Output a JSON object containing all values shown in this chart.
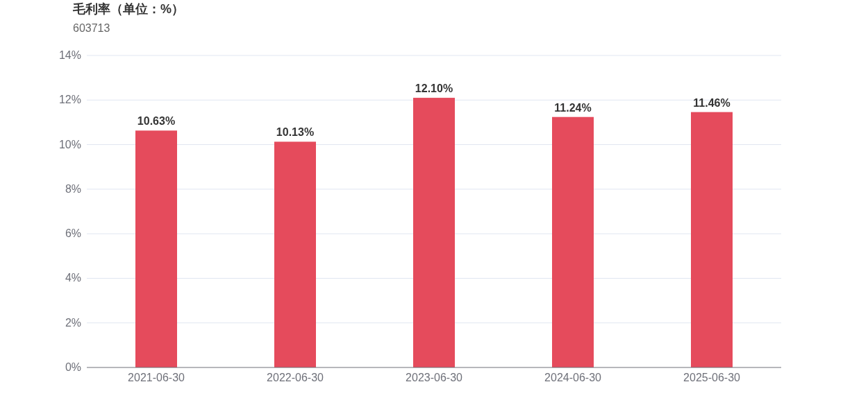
{
  "chart_data": {
    "type": "bar",
    "title": "毛利率（单位：%）",
    "subtitle": "603713",
    "categories": [
      "2021-06-30",
      "2022-06-30",
      "2023-06-30",
      "2024-06-30",
      "2025-06-30"
    ],
    "values": [
      10.63,
      10.13,
      12.1,
      11.24,
      11.46
    ],
    "value_labels": [
      "10.63%",
      "10.13%",
      "12.10%",
      "11.24%",
      "11.46%"
    ],
    "color": "#e54b5c",
    "ylim": [
      0,
      14
    ],
    "yticks": [
      {
        "value": 0,
        "label": "0%"
      },
      {
        "value": 2,
        "label": "2%"
      },
      {
        "value": 4,
        "label": "4%"
      },
      {
        "value": 6,
        "label": "6%"
      },
      {
        "value": 8,
        "label": "8%"
      },
      {
        "value": 10,
        "label": "10%"
      },
      {
        "value": 12,
        "label": "12%"
      },
      {
        "value": 14,
        "label": "14%"
      }
    ],
    "grid": "y"
  }
}
